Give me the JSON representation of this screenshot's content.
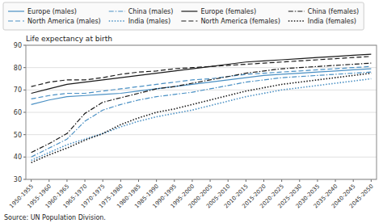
{
  "chart_data": {
    "type": "line",
    "y_label": "Life expectancy at birth",
    "annotations": [
      "Source:  UN Population Division."
    ],
    "categories": [
      "1950-1955",
      "1955-1960",
      "1960-1965",
      "1965-1970",
      "1970-1975",
      "1975-1980",
      "1980-1985",
      "1985-1990",
      "1990-1995",
      "1995-2000",
      "2000-2005",
      "2005-2010",
      "2010-2015",
      "2015-2020",
      "2020-2025",
      "2025-2030",
      "2030-2035",
      "2035-2040",
      "2040-2045",
      "2045-2050"
    ],
    "series": [
      {
        "name": "Europe (males)",
        "color": "#4a90c4",
        "line_style": "solid",
        "values": [
          63.5,
          65.5,
          67.0,
          67.5,
          68.0,
          68.5,
          69.5,
          70.5,
          71.5,
          72.5,
          73.5,
          74.5,
          75.5,
          76.5,
          77.0,
          77.5,
          78.0,
          78.5,
          79.0,
          79.5
        ]
      },
      {
        "name": "Europe (females)",
        "color": "#1a1a1a",
        "line_style": "solid",
        "values": [
          68.5,
          70.5,
          72.5,
          73.5,
          74.5,
          75.5,
          76.5,
          77.5,
          78.5,
          79.5,
          80.5,
          81.5,
          82.5,
          83.0,
          83.5,
          84.0,
          84.5,
          85.0,
          85.5,
          86.0
        ]
      },
      {
        "name": "North America (males)",
        "color": "#4a90c4",
        "line_style": "dashed",
        "values": [
          66.0,
          67.5,
          68.5,
          68.5,
          69.5,
          70.5,
          71.5,
          72.5,
          73.5,
          74.5,
          75.0,
          76.0,
          77.0,
          77.5,
          78.0,
          78.5,
          79.0,
          79.5,
          80.0,
          80.5
        ]
      },
      {
        "name": "North America (females)",
        "color": "#1a1a1a",
        "line_style": "dashed",
        "values": [
          71.5,
          73.5,
          74.5,
          74.5,
          75.5,
          77.0,
          78.0,
          78.5,
          79.5,
          80.0,
          80.5,
          81.0,
          81.5,
          82.0,
          82.5,
          83.0,
          83.5,
          84.0,
          84.5,
          85.0
        ]
      },
      {
        "name": "China (males)",
        "color": "#4a90c4",
        "line_style": "dashdot",
        "values": [
          40.0,
          44.0,
          48.0,
          56.0,
          61.0,
          63.5,
          65.5,
          67.0,
          68.0,
          69.0,
          70.5,
          72.0,
          73.5,
          74.5,
          75.5,
          76.0,
          76.5,
          77.0,
          77.5,
          78.0
        ]
      },
      {
        "name": "China (females)",
        "color": "#1a1a1a",
        "line_style": "dashdot",
        "values": [
          42.0,
          46.0,
          50.5,
          59.5,
          64.5,
          66.5,
          68.5,
          70.5,
          71.5,
          73.0,
          74.5,
          76.0,
          77.5,
          78.5,
          79.5,
          80.0,
          80.5,
          81.0,
          81.5,
          82.0
        ]
      },
      {
        "name": "India (males)",
        "color": "#4a90c4",
        "line_style": "dotted",
        "values": [
          38.5,
          42.0,
          45.5,
          48.0,
          50.5,
          53.5,
          56.0,
          58.0,
          59.5,
          61.0,
          63.0,
          65.0,
          67.0,
          68.5,
          70.0,
          71.0,
          72.0,
          73.0,
          74.0,
          75.0
        ]
      },
      {
        "name": "India (females)",
        "color": "#1a1a1a",
        "line_style": "dotted",
        "values": [
          37.5,
          41.0,
          44.0,
          47.5,
          50.5,
          54.5,
          57.5,
          60.0,
          61.5,
          63.5,
          65.5,
          67.5,
          69.5,
          71.0,
          72.5,
          73.5,
          74.5,
          75.5,
          76.5,
          77.5
        ]
      }
    ],
    "ylim": [
      30,
      90
    ],
    "yticks": [
      30,
      40,
      50,
      60,
      70,
      80,
      90
    ],
    "grid": true,
    "legend": "upper left"
  }
}
